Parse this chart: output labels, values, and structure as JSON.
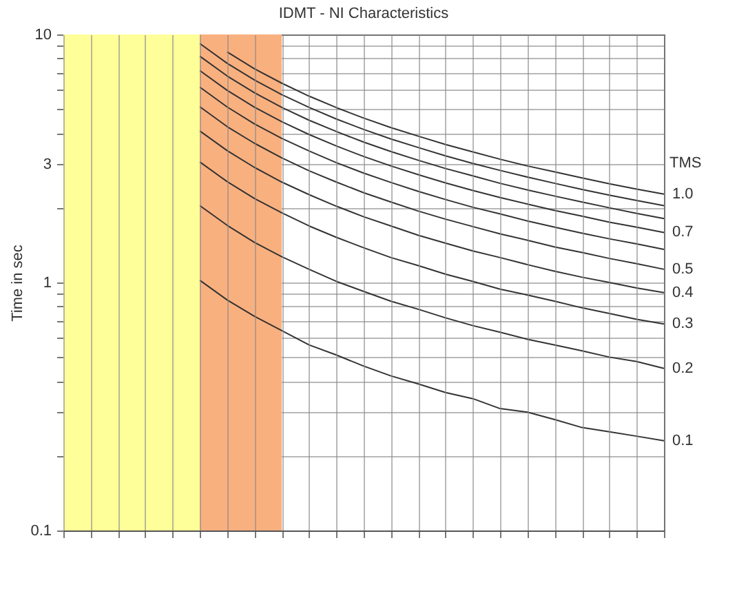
{
  "chart_data": {
    "type": "line",
    "title": "IDMT - NI Characteristics",
    "ylabel": "Time in sec",
    "legend_title": "TMS",
    "categories": [
      null,
      null,
      null,
      null,
      null,
      null,
      null,
      null,
      null,
      null,
      null,
      null,
      null,
      null,
      null,
      null,
      null,
      null,
      null,
      null,
      null,
      null,
      null
    ],
    "ylim": [
      0.1,
      10
    ],
    "yticks": [
      0.1,
      {
        "value": 0.2,
        "label": null
      },
      {
        "value": 0.3,
        "label": null
      },
      {
        "value": 0.4,
        "label": null
      },
      {
        "value": 0.5,
        "label": null
      },
      {
        "value": 0.6,
        "label": null
      },
      {
        "value": 0.7,
        "label": null
      },
      {
        "value": 0.8,
        "label": null
      },
      {
        "value": 0.9,
        "label": null
      },
      1,
      {
        "value": 2,
        "label": null
      },
      3,
      {
        "value": 4,
        "label": null
      },
      {
        "value": 5,
        "label": null
      },
      {
        "value": 6,
        "label": null
      },
      {
        "value": 7,
        "label": null
      },
      {
        "value": 8,
        "label": null
      },
      {
        "value": 9,
        "label": null
      },
      10
    ],
    "log": true,
    "grid": true,
    "tick_labels": "y",
    "legend": "right",
    "series": [
      {
        "name": "1.0",
        "color": "#333333",
        "values": [
          null,
          null,
          null,
          null,
          null,
          null,
          8.5,
          7.27,
          6.36,
          5.64,
          5.07,
          4.6,
          4.21,
          3.89,
          3.6,
          3.36,
          3.14,
          2.95,
          2.79,
          2.64,
          2.5,
          2.38,
          2.27
        ]
      },
      {
        "color": "#333333",
        "values": [
          null,
          null,
          null,
          null,
          null,
          9.19,
          7.65,
          6.55,
          5.72,
          5.08,
          4.56,
          4.14,
          3.79,
          3.5,
          3.24,
          3.02,
          2.83,
          2.66,
          2.51,
          2.37,
          2.25,
          2.14,
          2.04
        ]
      },
      {
        "color": "#333333",
        "values": [
          null,
          null,
          null,
          null,
          null,
          8.17,
          6.8,
          5.82,
          5.08,
          4.51,
          4.06,
          3.68,
          3.37,
          3.11,
          2.88,
          2.69,
          2.51,
          2.36,
          2.23,
          2.11,
          2.0,
          1.9,
          1.81
        ]
      },
      {
        "name": "0.7",
        "color": "#333333",
        "values": [
          null,
          null,
          null,
          null,
          null,
          7.15,
          5.95,
          5.09,
          4.45,
          3.95,
          3.55,
          3.22,
          2.95,
          2.72,
          2.52,
          2.35,
          2.2,
          2.07,
          1.95,
          1.85,
          1.75,
          1.67,
          1.59
        ]
      },
      {
        "color": "#333333",
        "values": [
          null,
          null,
          null,
          null,
          null,
          6.13,
          5.1,
          4.36,
          3.81,
          3.39,
          3.04,
          2.76,
          2.53,
          2.33,
          2.16,
          2.01,
          1.89,
          1.77,
          1.67,
          1.58,
          1.5,
          1.43,
          1.36
        ]
      },
      {
        "name": "0.5",
        "color": "#333333",
        "values": [
          null,
          null,
          null,
          null,
          null,
          5.11,
          4.25,
          3.64,
          3.18,
          2.82,
          2.54,
          2.3,
          2.11,
          1.94,
          1.8,
          1.68,
          1.57,
          1.48,
          1.39,
          1.32,
          1.25,
          1.19,
          1.13
        ]
      },
      {
        "name": "0.4",
        "color": "#333333",
        "values": [
          null,
          null,
          null,
          null,
          null,
          4.08,
          3.4,
          2.91,
          2.54,
          2.26,
          2.03,
          1.84,
          1.69,
          1.55,
          1.44,
          1.34,
          1.26,
          1.18,
          1.11,
          1.05,
          1.0,
          0.95,
          0.91
        ]
      },
      {
        "name": "0.3",
        "color": "#333333",
        "values": [
          null,
          null,
          null,
          null,
          null,
          3.06,
          2.55,
          2.18,
          1.91,
          1.69,
          1.52,
          1.38,
          1.26,
          1.17,
          1.08,
          1.01,
          0.94,
          0.89,
          0.84,
          0.79,
          0.75,
          0.71,
          0.68
        ]
      },
      {
        "name": "0.2",
        "color": "#333333",
        "values": [
          null,
          null,
          null,
          null,
          null,
          2.04,
          1.7,
          1.45,
          1.27,
          1.13,
          1.01,
          0.92,
          0.84,
          0.78,
          0.72,
          0.67,
          0.63,
          0.59,
          0.56,
          0.53,
          0.5,
          0.48,
          0.45
        ]
      },
      {
        "name": "0.1",
        "color": "#333333",
        "values": [
          null,
          null,
          null,
          null,
          null,
          1.02,
          0.85,
          0.73,
          0.64,
          0.56,
          0.51,
          0.46,
          0.42,
          0.39,
          0.36,
          0.34,
          0.31,
          0.3,
          0.28,
          0.26,
          0.25,
          0.24,
          0.23
        ]
      }
    ]
  }
}
